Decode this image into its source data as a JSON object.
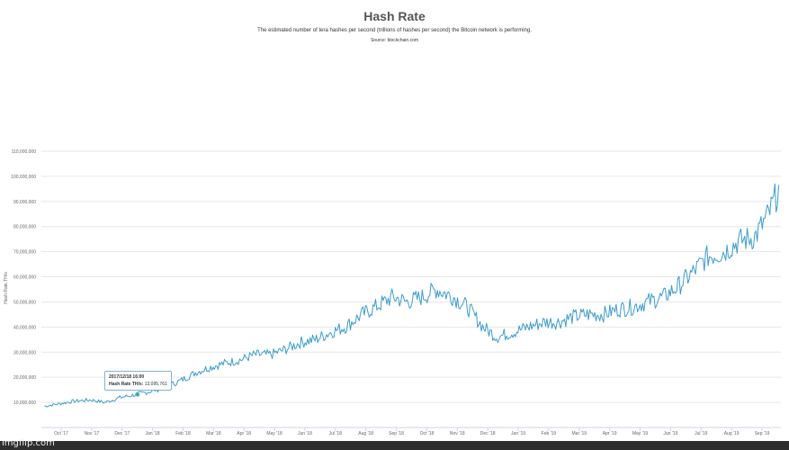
{
  "chart_data": {
    "type": "line",
    "title": "Hash Rate",
    "subtitle": "The estimated number of tera hashes per second (trillions of hashes per second) the Bitcoin network is performing.",
    "source": "Source: blockchain.com",
    "ylabel": "Hash Rate TH/s",
    "xlabel": "",
    "ylim": [
      0,
      110000000
    ],
    "y_ticks": [
      "10,000,000",
      "20,000,000",
      "30,000,000",
      "40,000,000",
      "50,000,000",
      "60,000,000",
      "70,000,000",
      "80,000,000",
      "90,000,000",
      "100,000,000",
      "110,000,000"
    ],
    "x_ticks": [
      "Oct '17",
      "Nov '17",
      "Dec '17",
      "Jan '18",
      "Feb '18",
      "Mar '18",
      "Apr '18",
      "May '18",
      "Jun '18",
      "Jul '18",
      "Aug '18",
      "Sep '18",
      "Oct '18",
      "Nov '18",
      "Dec '18",
      "Jan '19",
      "Feb '19",
      "Mar '19",
      "Apr '19",
      "May '19",
      "Jun '19",
      "Jul '19",
      "Aug '19",
      "Sep '19"
    ],
    "grid": true,
    "legend": "none",
    "line_color": "#3d9ccb",
    "series": [
      {
        "x": [
          "2017-09-15",
          "2017-10-01",
          "2017-10-15",
          "2017-11-01",
          "2017-11-15",
          "2017-12-01",
          "2017-12-15",
          "2018-01-01",
          "2018-01-15",
          "2018-02-01",
          "2018-02-15",
          "2018-03-01",
          "2018-03-15",
          "2018-04-01",
          "2018-04-15",
          "2018-05-01",
          "2018-05-15",
          "2018-06-01",
          "2018-06-15",
          "2018-07-01",
          "2018-07-15",
          "2018-08-01",
          "2018-08-15",
          "2018-09-01",
          "2018-09-15",
          "2018-10-01",
          "2018-10-15",
          "2018-11-01",
          "2018-11-15",
          "2018-12-01",
          "2018-12-15",
          "2019-01-01",
          "2019-01-15",
          "2019-02-01",
          "2019-02-15",
          "2019-03-01",
          "2019-03-15",
          "2019-04-01",
          "2019-04-15",
          "2019-05-01",
          "2019-05-15",
          "2019-06-01",
          "2019-06-15",
          "2019-07-01",
          "2019-07-15",
          "2019-08-01",
          "2019-08-15",
          "2019-09-01",
          "2019-09-15",
          "2019-09-25"
        ],
        "values": [
          8500000,
          9500000,
          10500000,
          11000000,
          10000000,
          12000000,
          13000000,
          14500000,
          16000000,
          19000000,
          22000000,
          24000000,
          25500000,
          27000000,
          29000000,
          29000000,
          31000000,
          34000000,
          35000000,
          38000000,
          40000000,
          45000000,
          48000000,
          52000000,
          50000000,
          52000000,
          55000000,
          52000000,
          48000000,
          40000000,
          36000000,
          38000000,
          40000000,
          42000000,
          42000000,
          44000000,
          45000000,
          45000000,
          47000000,
          48000000,
          50000000,
          52000000,
          56000000,
          62000000,
          68000000,
          70000000,
          74000000,
          76000000,
          85000000,
          95000000
        ]
      }
    ],
    "tooltip": {
      "date": "2017/12/18 16:00",
      "label": "Hash Rate TH/s:",
      "value": "13,095,761"
    }
  },
  "watermark": "imgflip.com"
}
